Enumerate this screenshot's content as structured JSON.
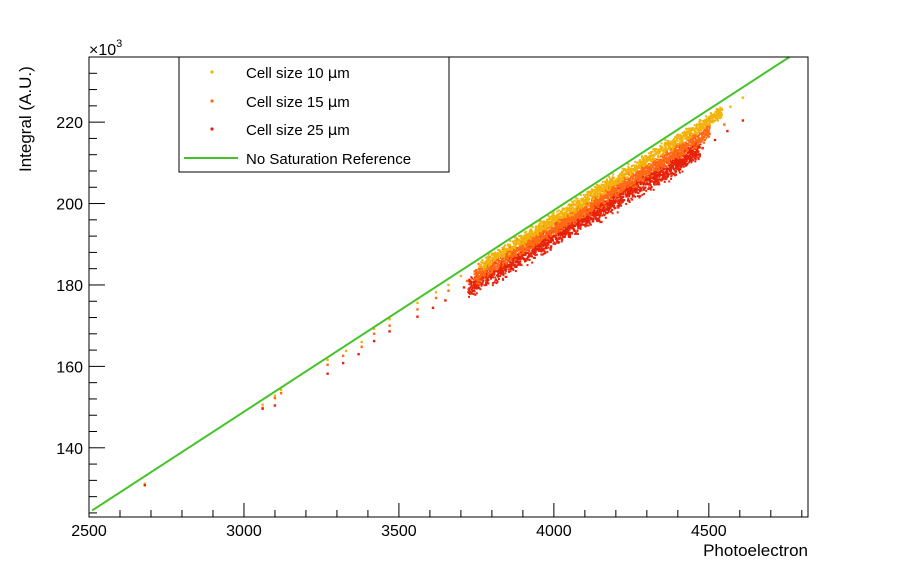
{
  "chart_data": {
    "type": "scatter",
    "title": "",
    "xlabel": "Photoelectron",
    "ylabel": "Integral (A.U.)",
    "y_multiplier_label": "×10",
    "y_multiplier_exponent": "3",
    "xlim": [
      2500,
      4820
    ],
    "ylim": [
      123,
      236
    ],
    "x_ticks": [
      2500,
      3000,
      3500,
      4000,
      4500
    ],
    "x_tick_labels": [
      "2500",
      "3000",
      "3500",
      "4000",
      "4500"
    ],
    "y_ticks": [
      140,
      160,
      180,
      200,
      220
    ],
    "y_tick_labels": [
      "140",
      "160",
      "180",
      "200",
      "220"
    ],
    "grid": false,
    "legend_position": "top-left",
    "legend_entries": [
      {
        "label_prefix": "Cell size 10 ",
        "label_suffix": "m",
        "greek": "µ",
        "color": "#f2b40a",
        "marker": "point"
      },
      {
        "label_prefix": "Cell size 15 ",
        "label_suffix": "m",
        "greek": "µ",
        "color": "#ff6a14",
        "marker": "point"
      },
      {
        "label_prefix": "Cell size 25 ",
        "label_suffix": "m",
        "greek": "µ",
        "color": "#e8220a",
        "marker": "point"
      },
      {
        "label_prefix": "No Saturation Reference",
        "label_suffix": "",
        "greek": "",
        "color": "#45c32a",
        "marker": "line"
      }
    ],
    "series": [
      {
        "name": "No Saturation Reference",
        "type": "line",
        "color": "#45c32a",
        "x": [
          2510,
          4760
        ],
        "y": [
          124.6,
          236.0
        ]
      },
      {
        "name": "Cell size 10 µm",
        "type": "scatter",
        "color": "#f2b40a",
        "x": [
          2680,
          3060,
          3100,
          3120,
          3270,
          3330,
          3380,
          3420,
          3470,
          3560,
          3620,
          3660,
          3700,
          3760,
          3820,
          3880,
          3930,
          3980,
          4030,
          4080,
          4130,
          4180,
          4230,
          4280,
          4330,
          4380,
          4430,
          4480,
          4530,
          4570,
          4610
        ],
        "y": [
          131.2,
          150.6,
          152.8,
          154.2,
          161.6,
          163.8,
          166.0,
          169.2,
          171.6,
          175.6,
          178.2,
          180.0,
          182.2,
          184.6,
          187.2,
          190.2,
          192.6,
          195.0,
          197.6,
          200.0,
          202.4,
          204.8,
          207.2,
          209.8,
          212.2,
          214.6,
          217.0,
          219.4,
          222.0,
          223.8,
          226.0
        ]
      },
      {
        "name": "Cell size 15 µm",
        "type": "scatter",
        "color": "#ff6a14",
        "x": [
          3060,
          3100,
          3120,
          3270,
          3320,
          3380,
          3420,
          3470,
          3560,
          3620,
          3660,
          3720,
          3780,
          3840,
          3900,
          3950,
          4000,
          4050,
          4100,
          4150,
          4200,
          4250,
          4300,
          4350,
          4400,
          4450,
          4500,
          4550
        ],
        "y": [
          149.8,
          152.2,
          153.4,
          160.4,
          162.6,
          164.8,
          168.0,
          170.0,
          174.0,
          176.8,
          178.6,
          181.0,
          183.4,
          186.0,
          188.6,
          191.0,
          193.4,
          195.8,
          198.2,
          200.6,
          203.0,
          205.4,
          207.8,
          210.2,
          212.6,
          214.8,
          217.2,
          219.4
        ]
      },
      {
        "name": "Cell size 25 µm",
        "type": "scatter",
        "color": "#e8220a",
        "x": [
          2680,
          3060,
          3100,
          3270,
          3320,
          3370,
          3420,
          3470,
          3560,
          3610,
          3650,
          3710,
          3770,
          3830,
          3890,
          3940,
          3990,
          4040,
          4090,
          4140,
          4190,
          4240,
          4290,
          4340,
          4390,
          4440,
          4480,
          4520,
          4560,
          4610
        ],
        "y": [
          130.8,
          149.6,
          150.4,
          158.2,
          160.8,
          163.0,
          166.2,
          168.6,
          172.2,
          174.4,
          176.2,
          179.4,
          181.8,
          184.2,
          186.8,
          189.0,
          191.4,
          193.8,
          196.0,
          198.2,
          200.6,
          202.8,
          205.0,
          207.4,
          209.6,
          211.8,
          213.6,
          215.6,
          217.8,
          220.4
        ]
      }
    ]
  }
}
